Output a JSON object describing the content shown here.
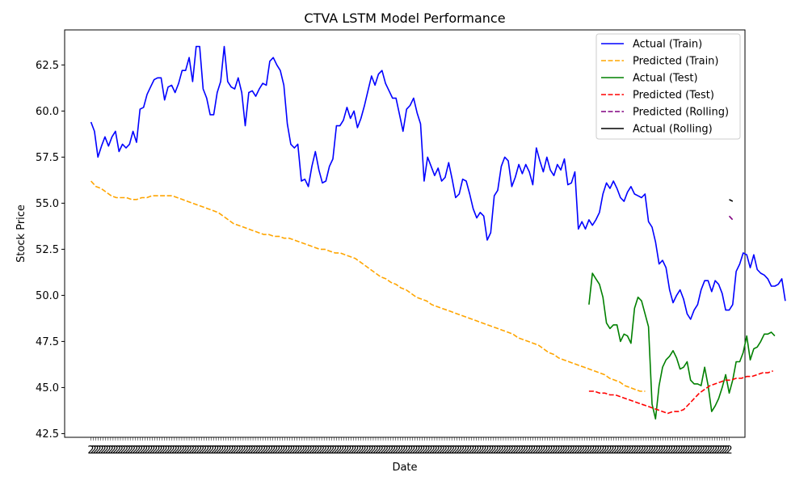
{
  "chart_data": {
    "type": "line",
    "title": "CTVA LSTM Model Performance",
    "xlabel": "Date",
    "ylabel": "Stock Price",
    "ylim": [
      42.3,
      64.4
    ],
    "xlim": [
      -7.5,
      186.5
    ],
    "y_ticks": [
      42.5,
      45.0,
      47.5,
      50.0,
      52.5,
      55.0,
      57.5,
      60.0,
      62.5
    ],
    "y_tick_labels": [
      "42.5",
      "45.0",
      "47.5",
      "50.0",
      "52.5",
      "55.0",
      "57.5",
      "60.0",
      "62.5"
    ],
    "x_tick_labels_note": "2",
    "grid": false,
    "legend_position": "top-right",
    "series": [
      {
        "name": "Actual (Train)",
        "color": "#0000ff",
        "style": "solid",
        "x_start": 0,
        "values": [
          59.4,
          58.9,
          57.5,
          58.1,
          58.6,
          58.1,
          58.6,
          58.9,
          57.8,
          58.2,
          58.0,
          58.2,
          58.9,
          58.3,
          60.1,
          60.2,
          60.9,
          61.3,
          61.7,
          61.8,
          61.8,
          60.6,
          61.3,
          61.4,
          61.0,
          61.5,
          62.2,
          62.2,
          62.9,
          61.6,
          63.5,
          63.5,
          61.2,
          60.7,
          59.8,
          59.8,
          61.0,
          61.6,
          63.5,
          61.6,
          61.3,
          61.2,
          61.8,
          61.0,
          59.2,
          61.0,
          61.1,
          60.8,
          61.2,
          61.5,
          61.4,
          62.7,
          62.9,
          62.5,
          62.2,
          61.4,
          59.3,
          58.2,
          58.0,
          58.2,
          56.2,
          56.3,
          55.9,
          57.0,
          57.8,
          56.8,
          56.1,
          56.2,
          57.0,
          57.4,
          59.2,
          59.2,
          59.5,
          60.2,
          59.6,
          60.0,
          59.1,
          59.6,
          60.3,
          61.1,
          61.9,
          61.4,
          62.0,
          62.2,
          61.5,
          61.1,
          60.7,
          60.7,
          59.8,
          58.9,
          60.1,
          60.3,
          60.7,
          59.9,
          59.3,
          56.2,
          57.5,
          57.0,
          56.5,
          56.9,
          56.2,
          56.4,
          57.2,
          56.3,
          55.3,
          55.5,
          56.3,
          56.2,
          55.5,
          54.7,
          54.2,
          54.5,
          54.3,
          53.0,
          53.4,
          55.4,
          55.7,
          57.0,
          57.5,
          57.3,
          55.9,
          56.4,
          57.1,
          56.6,
          57.1,
          56.7,
          56.0,
          58.0,
          57.3,
          56.7,
          57.5,
          56.8,
          56.5,
          57.1,
          56.8,
          57.4,
          56.0,
          56.1,
          56.7,
          53.6,
          54.0,
          53.6,
          54.1,
          53.8,
          54.1,
          54.5,
          55.5,
          56.1,
          55.8,
          56.2,
          55.8,
          55.3,
          55.1,
          55.6,
          55.9,
          55.5,
          55.4,
          55.3,
          55.5,
          54.0,
          53.7,
          52.9,
          51.7,
          51.9,
          51.5,
          50.3,
          49.6,
          50.0,
          50.3,
          49.8,
          49.0,
          48.7,
          49.2,
          49.5,
          50.3,
          50.8,
          50.8,
          50.2,
          50.8,
          50.6,
          50.1,
          49.2,
          49.2,
          49.5,
          51.3,
          51.7,
          52.3,
          52.2,
          51.5,
          52.2,
          51.4,
          51.2,
          51.1,
          50.9,
          50.5,
          50.5,
          50.6,
          50.9,
          49.7
        ]
      },
      {
        "name": "Predicted (Train)",
        "color": "#ffa500",
        "style": "dashed",
        "x_start": 0,
        "values": [
          56.2,
          55.9,
          55.8,
          55.6,
          55.4,
          55.3,
          55.3,
          55.3,
          55.2,
          55.2,
          55.3,
          55.3,
          55.4,
          55.4,
          55.4,
          55.4,
          55.4,
          55.3,
          55.2,
          55.1,
          55.0,
          54.9,
          54.8,
          54.7,
          54.6,
          54.5,
          54.3,
          54.1,
          53.9,
          53.8,
          53.7,
          53.6,
          53.5,
          53.4,
          53.3,
          53.3,
          53.2,
          53.2,
          53.1,
          53.1,
          53.0,
          52.9,
          52.8,
          52.7,
          52.6,
          52.5,
          52.5,
          52.4,
          52.3,
          52.3,
          52.2,
          52.1,
          52.0,
          51.8,
          51.6,
          51.4,
          51.2,
          51.0,
          50.9,
          50.7,
          50.6,
          50.4,
          50.3,
          50.1,
          49.9,
          49.8,
          49.7,
          49.5,
          49.4,
          49.3,
          49.2,
          49.1,
          49.0,
          48.9,
          48.8,
          48.7,
          48.6,
          48.5,
          48.4,
          48.3,
          48.2,
          48.1,
          48.0,
          47.9,
          47.7,
          47.6,
          47.5,
          47.4,
          47.3,
          47.1,
          46.9,
          46.8,
          46.6,
          46.5,
          46.4,
          46.3,
          46.2,
          46.1,
          46.0,
          45.9,
          45.8,
          45.7,
          45.5,
          45.4,
          45.3,
          45.1,
          45.0,
          44.9,
          44.8,
          44.8
        ],
        "x_step": 1.45
      },
      {
        "name": "Actual (Test)",
        "color": "#008000",
        "style": "solid",
        "x_start": 142,
        "values": [
          49.5,
          51.2,
          50.9,
          50.6,
          49.9,
          48.5,
          48.2,
          48.4,
          48.4,
          47.5,
          47.9,
          47.8,
          47.4,
          49.3,
          49.9,
          49.7,
          49.0,
          48.3,
          44.1,
          43.3,
          45.1,
          46.1,
          46.5,
          46.7,
          47.0,
          46.6,
          46.0,
          46.1,
          46.4,
          45.4,
          45.2,
          45.2,
          45.1,
          46.1,
          45.1,
          43.7,
          44.0,
          44.4,
          45.0,
          45.7,
          44.7,
          45.4,
          46.4,
          46.4,
          46.9,
          47.8,
          46.5,
          47.1,
          47.2,
          47.5,
          47.9,
          47.9,
          48.0,
          47.8
        ]
      },
      {
        "name": "Predicted (Test)",
        "color": "#ff0000",
        "style": "dashed",
        "x_start": 142,
        "values": [
          44.8,
          44.8,
          44.7,
          44.7,
          44.6,
          44.6,
          44.5,
          44.4,
          44.3,
          44.2,
          44.1,
          44.0,
          43.9,
          43.8,
          43.7,
          43.6,
          43.7,
          43.7,
          43.8,
          44.1,
          44.4,
          44.7,
          44.9,
          45.1,
          45.2,
          45.3,
          45.4,
          45.4,
          45.5,
          45.5,
          45.6,
          45.6,
          45.7,
          45.8,
          45.8,
          45.9
        ],
        "x_step": 1.5
      },
      {
        "name": "Predicted (Rolling)",
        "color": "#800080",
        "style": "dashed",
        "x_start": 182,
        "values": [
          54.3,
          54.1
        ]
      },
      {
        "name": "Actual (Rolling)",
        "color": "#000000",
        "style": "solid",
        "x_start": 182,
        "values": [
          55.2,
          55.1
        ]
      }
    ]
  }
}
